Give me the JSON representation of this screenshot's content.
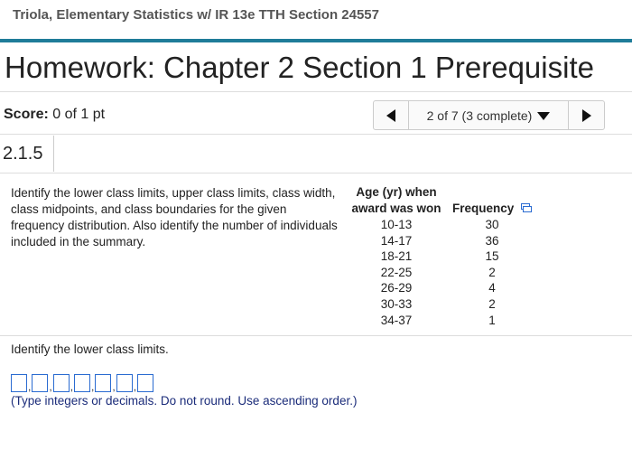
{
  "header": {
    "course": "Triola, Elementary Statistics w/ IR 13e TTH Section 24557"
  },
  "title": "Homework: Chapter 2 Section 1 Prerequisite",
  "score": {
    "label": "Score:",
    "value": "0 of 1 pt"
  },
  "navigation": {
    "position": "2 of 7 (3 complete)"
  },
  "question": {
    "id": "2.1.5",
    "text": "Identify the lower class limits, upper class limits, class width, class midpoints, and class boundaries for the given frequency distribution. Also identify the number of individuals included in the summary.",
    "table": {
      "headers": [
        "Age (yr) when award was won",
        "Frequency"
      ],
      "rows": [
        [
          "10-13",
          30
        ],
        [
          "14-17",
          36
        ],
        [
          "18-21",
          15
        ],
        [
          "22-25",
          2
        ],
        [
          "26-29",
          4
        ],
        [
          "30-33",
          2
        ],
        [
          "34-37",
          1
        ]
      ]
    },
    "prompt": "Identify the lower class limits.",
    "separator": ",",
    "instruction": "(Type integers or decimals. Do not round. Use ascending order.)"
  }
}
